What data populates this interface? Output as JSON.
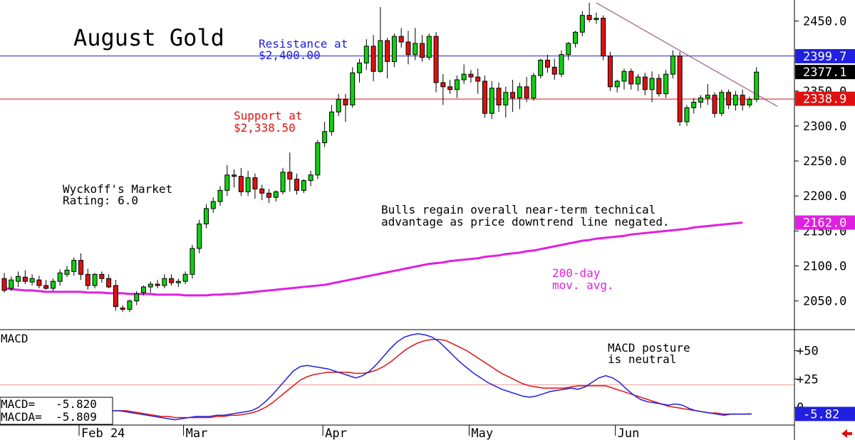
{
  "chart_data": [
    {
      "type": "candlestick",
      "title": "August Gold",
      "y_ticks": [
        2050,
        2100,
        2150,
        2200,
        2250,
        2300,
        2350,
        2400,
        2450
      ],
      "y_tick_labels": [
        "2050.0",
        "2100.0",
        "2150.0",
        "2200.0",
        "2250.0",
        "2300.0",
        "2350.0",
        "2400.0",
        "2450.0"
      ],
      "ylim": [
        2010,
        2480
      ],
      "x_labels": [
        "Feb 24",
        "Mar",
        "Apr",
        "May",
        "Jun"
      ],
      "x_label_index": [
        0,
        15,
        35,
        56,
        77
      ],
      "resistance": {
        "value": 2400.0,
        "label_line1": "Resistance at",
        "label_line2": "$2,400.00",
        "color": "#2020e0"
      },
      "support": {
        "value": 2338.5,
        "label_line1": "Support at",
        "label_line2": "$2,338.50",
        "color": "#e01010"
      },
      "price_tags": [
        {
          "label": "2399.7",
          "value": 2399.7,
          "bg": "#2020e0",
          "fg": "#ffffff"
        },
        {
          "label": "2377.1",
          "value": 2377.1,
          "bg": "#000000",
          "fg": "#ffffff"
        },
        {
          "label": "2338.9",
          "value": 2338.9,
          "bg": "#e01010",
          "fg": "#ffffff"
        },
        {
          "label": "2162.0",
          "value": 2162.0,
          "bg": "#e020e0",
          "fg": "#ffffff"
        }
      ],
      "annotations": {
        "rating_line1": "Wyckoff's Market",
        "rating_line2": "Rating: 6.0",
        "comment_line1": "Bulls regain overall near-term technical",
        "comment_line2": "advantage as price downtrend line negated.",
        "ma_line1": "200-day",
        "ma_line2": "mov. avg."
      },
      "colors": {
        "up": "#10d010",
        "down": "#e01010",
        "ma": "#e020e0",
        "trend": "#8b3a6b"
      },
      "candles": [
        [
          2082,
          2090,
          2062,
          2065
        ],
        [
          2068,
          2085,
          2064,
          2080
        ],
        [
          2078,
          2092,
          2070,
          2085
        ],
        [
          2084,
          2094,
          2074,
          2078
        ],
        [
          2077,
          2088,
          2072,
          2082
        ],
        [
          2080,
          2086,
          2068,
          2072
        ],
        [
          2072,
          2080,
          2066,
          2068
        ],
        [
          2068,
          2082,
          2064,
          2078
        ],
        [
          2078,
          2095,
          2072,
          2090
        ],
        [
          2088,
          2100,
          2084,
          2094
        ],
        [
          2092,
          2112,
          2086,
          2108
        ],
        [
          2108,
          2118,
          2080,
          2088
        ],
        [
          2088,
          2096,
          2066,
          2072
        ],
        [
          2072,
          2090,
          2068,
          2088
        ],
        [
          2088,
          2092,
          2076,
          2082
        ],
        [
          2082,
          2088,
          2068,
          2070
        ],
        [
          2072,
          2080,
          2036,
          2042
        ],
        [
          2040,
          2044,
          2034,
          2038
        ],
        [
          2038,
          2052,
          2034,
          2050
        ],
        [
          2050,
          2064,
          2044,
          2060
        ],
        [
          2062,
          2072,
          2058,
          2070
        ],
        [
          2070,
          2078,
          2062,
          2074
        ],
        [
          2074,
          2080,
          2068,
          2072
        ],
        [
          2072,
          2088,
          2068,
          2082
        ],
        [
          2082,
          2088,
          2072,
          2076
        ],
        [
          2076,
          2082,
          2070,
          2078
        ],
        [
          2078,
          2092,
          2074,
          2088
        ],
        [
          2088,
          2130,
          2082,
          2125
        ],
        [
          2125,
          2166,
          2118,
          2160
        ],
        [
          2160,
          2188,
          2154,
          2182
        ],
        [
          2182,
          2198,
          2176,
          2192
        ],
        [
          2192,
          2214,
          2186,
          2208
        ],
        [
          2208,
          2244,
          2200,
          2230
        ],
        [
          2230,
          2238,
          2212,
          2228
        ],
        [
          2228,
          2240,
          2200,
          2206
        ],
        [
          2206,
          2236,
          2200,
          2226
        ],
        [
          2226,
          2232,
          2196,
          2210
        ],
        [
          2210,
          2216,
          2194,
          2204
        ],
        [
          2204,
          2210,
          2190,
          2198
        ],
        [
          2198,
          2208,
          2192,
          2206
        ],
        [
          2206,
          2240,
          2202,
          2234
        ],
        [
          2234,
          2262,
          2206,
          2224
        ],
        [
          2224,
          2232,
          2202,
          2208
        ],
        [
          2208,
          2224,
          2204,
          2222
        ],
        [
          2222,
          2236,
          2214,
          2230
        ],
        [
          2230,
          2280,
          2224,
          2276
        ],
        [
          2276,
          2306,
          2270,
          2292
        ],
        [
          2292,
          2330,
          2286,
          2320
        ],
        [
          2320,
          2346,
          2314,
          2338
        ],
        [
          2338,
          2346,
          2306,
          2330
        ],
        [
          2330,
          2384,
          2326,
          2376
        ],
        [
          2376,
          2396,
          2362,
          2390
        ],
        [
          2390,
          2424,
          2380,
          2414
        ],
        [
          2414,
          2430,
          2364,
          2378
        ],
        [
          2378,
          2470,
          2376,
          2422
        ],
        [
          2422,
          2426,
          2368,
          2392
        ],
        [
          2392,
          2432,
          2384,
          2428
        ],
        [
          2428,
          2440,
          2412,
          2420
        ],
        [
          2420,
          2436,
          2388,
          2402
        ],
        [
          2402,
          2440,
          2394,
          2418
        ],
        [
          2418,
          2430,
          2392,
          2398
        ],
        [
          2398,
          2432,
          2394,
          2428
        ],
        [
          2428,
          2434,
          2348,
          2362
        ],
        [
          2362,
          2374,
          2330,
          2356
        ],
        [
          2356,
          2366,
          2346,
          2352
        ],
        [
          2352,
          2372,
          2340,
          2366
        ],
        [
          2366,
          2388,
          2360,
          2374
        ],
        [
          2374,
          2380,
          2362,
          2370
        ],
        [
          2370,
          2382,
          2346,
          2364
        ],
        [
          2364,
          2372,
          2312,
          2318
        ],
        [
          2318,
          2364,
          2310,
          2354
        ],
        [
          2354,
          2362,
          2320,
          2330
        ],
        [
          2330,
          2356,
          2312,
          2348
        ],
        [
          2348,
          2366,
          2320,
          2340
        ],
        [
          2340,
          2362,
          2324,
          2356
        ],
        [
          2356,
          2370,
          2334,
          2340
        ],
        [
          2340,
          2376,
          2336,
          2372
        ],
        [
          2372,
          2396,
          2368,
          2394
        ],
        [
          2394,
          2402,
          2376,
          2384
        ],
        [
          2384,
          2396,
          2366,
          2374
        ],
        [
          2374,
          2408,
          2370,
          2402
        ],
        [
          2402,
          2420,
          2394,
          2418
        ],
        [
          2418,
          2436,
          2412,
          2434
        ],
        [
          2434,
          2464,
          2428,
          2458
        ],
        [
          2458,
          2476,
          2448,
          2452
        ],
        [
          2452,
          2462,
          2446,
          2454
        ],
        [
          2454,
          2458,
          2394,
          2400
        ],
        [
          2400,
          2406,
          2350,
          2356
        ],
        [
          2356,
          2366,
          2348,
          2364
        ],
        [
          2364,
          2382,
          2352,
          2378
        ],
        [
          2378,
          2382,
          2352,
          2360
        ],
        [
          2360,
          2374,
          2350,
          2370
        ],
        [
          2370,
          2376,
          2344,
          2352
        ],
        [
          2352,
          2378,
          2334,
          2368
        ],
        [
          2368,
          2374,
          2342,
          2346
        ],
        [
          2346,
          2380,
          2340,
          2374
        ],
        [
          2374,
          2408,
          2368,
          2400
        ],
        [
          2400,
          2406,
          2300,
          2306
        ],
        [
          2306,
          2330,
          2300,
          2326
        ],
        [
          2326,
          2340,
          2318,
          2334
        ],
        [
          2334,
          2344,
          2326,
          2340
        ],
        [
          2340,
          2360,
          2330,
          2344
        ],
        [
          2344,
          2348,
          2312,
          2318
        ],
        [
          2318,
          2352,
          2314,
          2348
        ],
        [
          2348,
          2352,
          2324,
          2330
        ],
        [
          2330,
          2350,
          2322,
          2344
        ],
        [
          2344,
          2352,
          2322,
          2330
        ],
        [
          2330,
          2342,
          2326,
          2338
        ],
        [
          2338,
          2384,
          2334,
          2377
        ]
      ],
      "moving_average": [
        2068,
        2067,
        2066,
        2065,
        2065,
        2064,
        2063,
        2063,
        2063,
        2063,
        2063,
        2063,
        2062,
        2062,
        2062,
        2061,
        2061,
        2061,
        2060,
        2060,
        2060,
        2060,
        2059,
        2059,
        2059,
        2059,
        2058,
        2058,
        2058,
        2058,
        2059,
        2059,
        2060,
        2060,
        2061,
        2062,
        2063,
        2064,
        2065,
        2066,
        2067,
        2068,
        2069,
        2070,
        2071,
        2072,
        2073,
        2075,
        2077,
        2079,
        2081,
        2083,
        2085,
        2087,
        2089,
        2091,
        2093,
        2095,
        2097,
        2099,
        2101,
        2103,
        2104,
        2105,
        2107,
        2108,
        2109,
        2110,
        2111,
        2113,
        2114,
        2115,
        2117,
        2118,
        2119,
        2121,
        2122,
        2124,
        2126,
        2128,
        2130,
        2132,
        2134,
        2136,
        2137,
        2139,
        2140,
        2141,
        2142,
        2143,
        2145,
        2146,
        2147,
        2148,
        2149,
        2150,
        2151,
        2152,
        2153,
        2155,
        2156,
        2157,
        2158,
        2159,
        2160,
        2161,
        2162
      ],
      "trend_line": {
        "from_index": 85,
        "from_value": 2476,
        "to_index": 111,
        "to_value": 2328
      }
    },
    {
      "type": "line",
      "title": "MACD",
      "y_ticks": [
        0,
        25,
        50
      ],
      "y_tick_labels": [
        "0",
        "+25",
        "+50"
      ],
      "ylim": [
        -15,
        68
      ],
      "reference_line": {
        "value": 20,
        "color": "#e01010"
      },
      "legend": {
        "macd_line": "MACD=   -5.820",
        "macda_line": "MACDA=  -5.809"
      },
      "note_line1": "MACD posture",
      "note_line2": "is neutral",
      "value_tag": {
        "label": "-5.82",
        "value": -5.82,
        "bg": "#2020e0",
        "fg": "#ffffff"
      },
      "series": [
        {
          "name": "MACD",
          "color": "#2020e0",
          "values": [
            -3,
            -3,
            -4,
            -5,
            -6,
            -7,
            -8,
            -9,
            -10,
            -11,
            -10,
            -9,
            -8,
            -8,
            -8,
            -7,
            -7,
            -6,
            -5,
            -4,
            -3,
            0,
            5,
            11,
            18,
            25,
            32,
            36,
            37,
            36,
            35,
            34,
            32,
            30,
            28,
            26,
            28,
            32,
            38,
            45,
            52,
            58,
            62,
            64,
            65,
            64,
            62,
            58,
            52,
            46,
            40,
            35,
            30,
            26,
            22,
            19,
            16,
            14,
            12,
            10,
            9,
            10,
            12,
            14,
            15,
            16,
            17,
            16,
            18,
            22,
            26,
            28,
            26,
            22,
            16,
            11,
            7,
            5,
            4,
            3,
            2,
            3,
            2,
            -1,
            -3,
            -4,
            -5,
            -6,
            -7,
            -6,
            -6,
            -6,
            -5.82
          ]
        },
        {
          "name": "MACDA",
          "color": "#e01010",
          "values": [
            -3,
            -3,
            -3,
            -4,
            -5,
            -6,
            -7,
            -8,
            -8,
            -9,
            -9,
            -9,
            -9,
            -9,
            -9,
            -8,
            -8,
            -7,
            -7,
            -6,
            -5,
            -3,
            0,
            4,
            9,
            14,
            19,
            24,
            27,
            29,
            30,
            31,
            31,
            31,
            31,
            30,
            30,
            31,
            33,
            36,
            40,
            45,
            50,
            54,
            57,
            59,
            60,
            60,
            59,
            56,
            53,
            50,
            46,
            42,
            38,
            34,
            30,
            27,
            24,
            21,
            19,
            18,
            17,
            17,
            17,
            17,
            18,
            19,
            19,
            19,
            19,
            19,
            17,
            15,
            13,
            11,
            9,
            7,
            5,
            3,
            1,
            0,
            -1,
            -2,
            -3,
            -4,
            -5,
            -5,
            -6,
            -6,
            -6,
            -6,
            -5.809
          ]
        }
      ]
    }
  ]
}
